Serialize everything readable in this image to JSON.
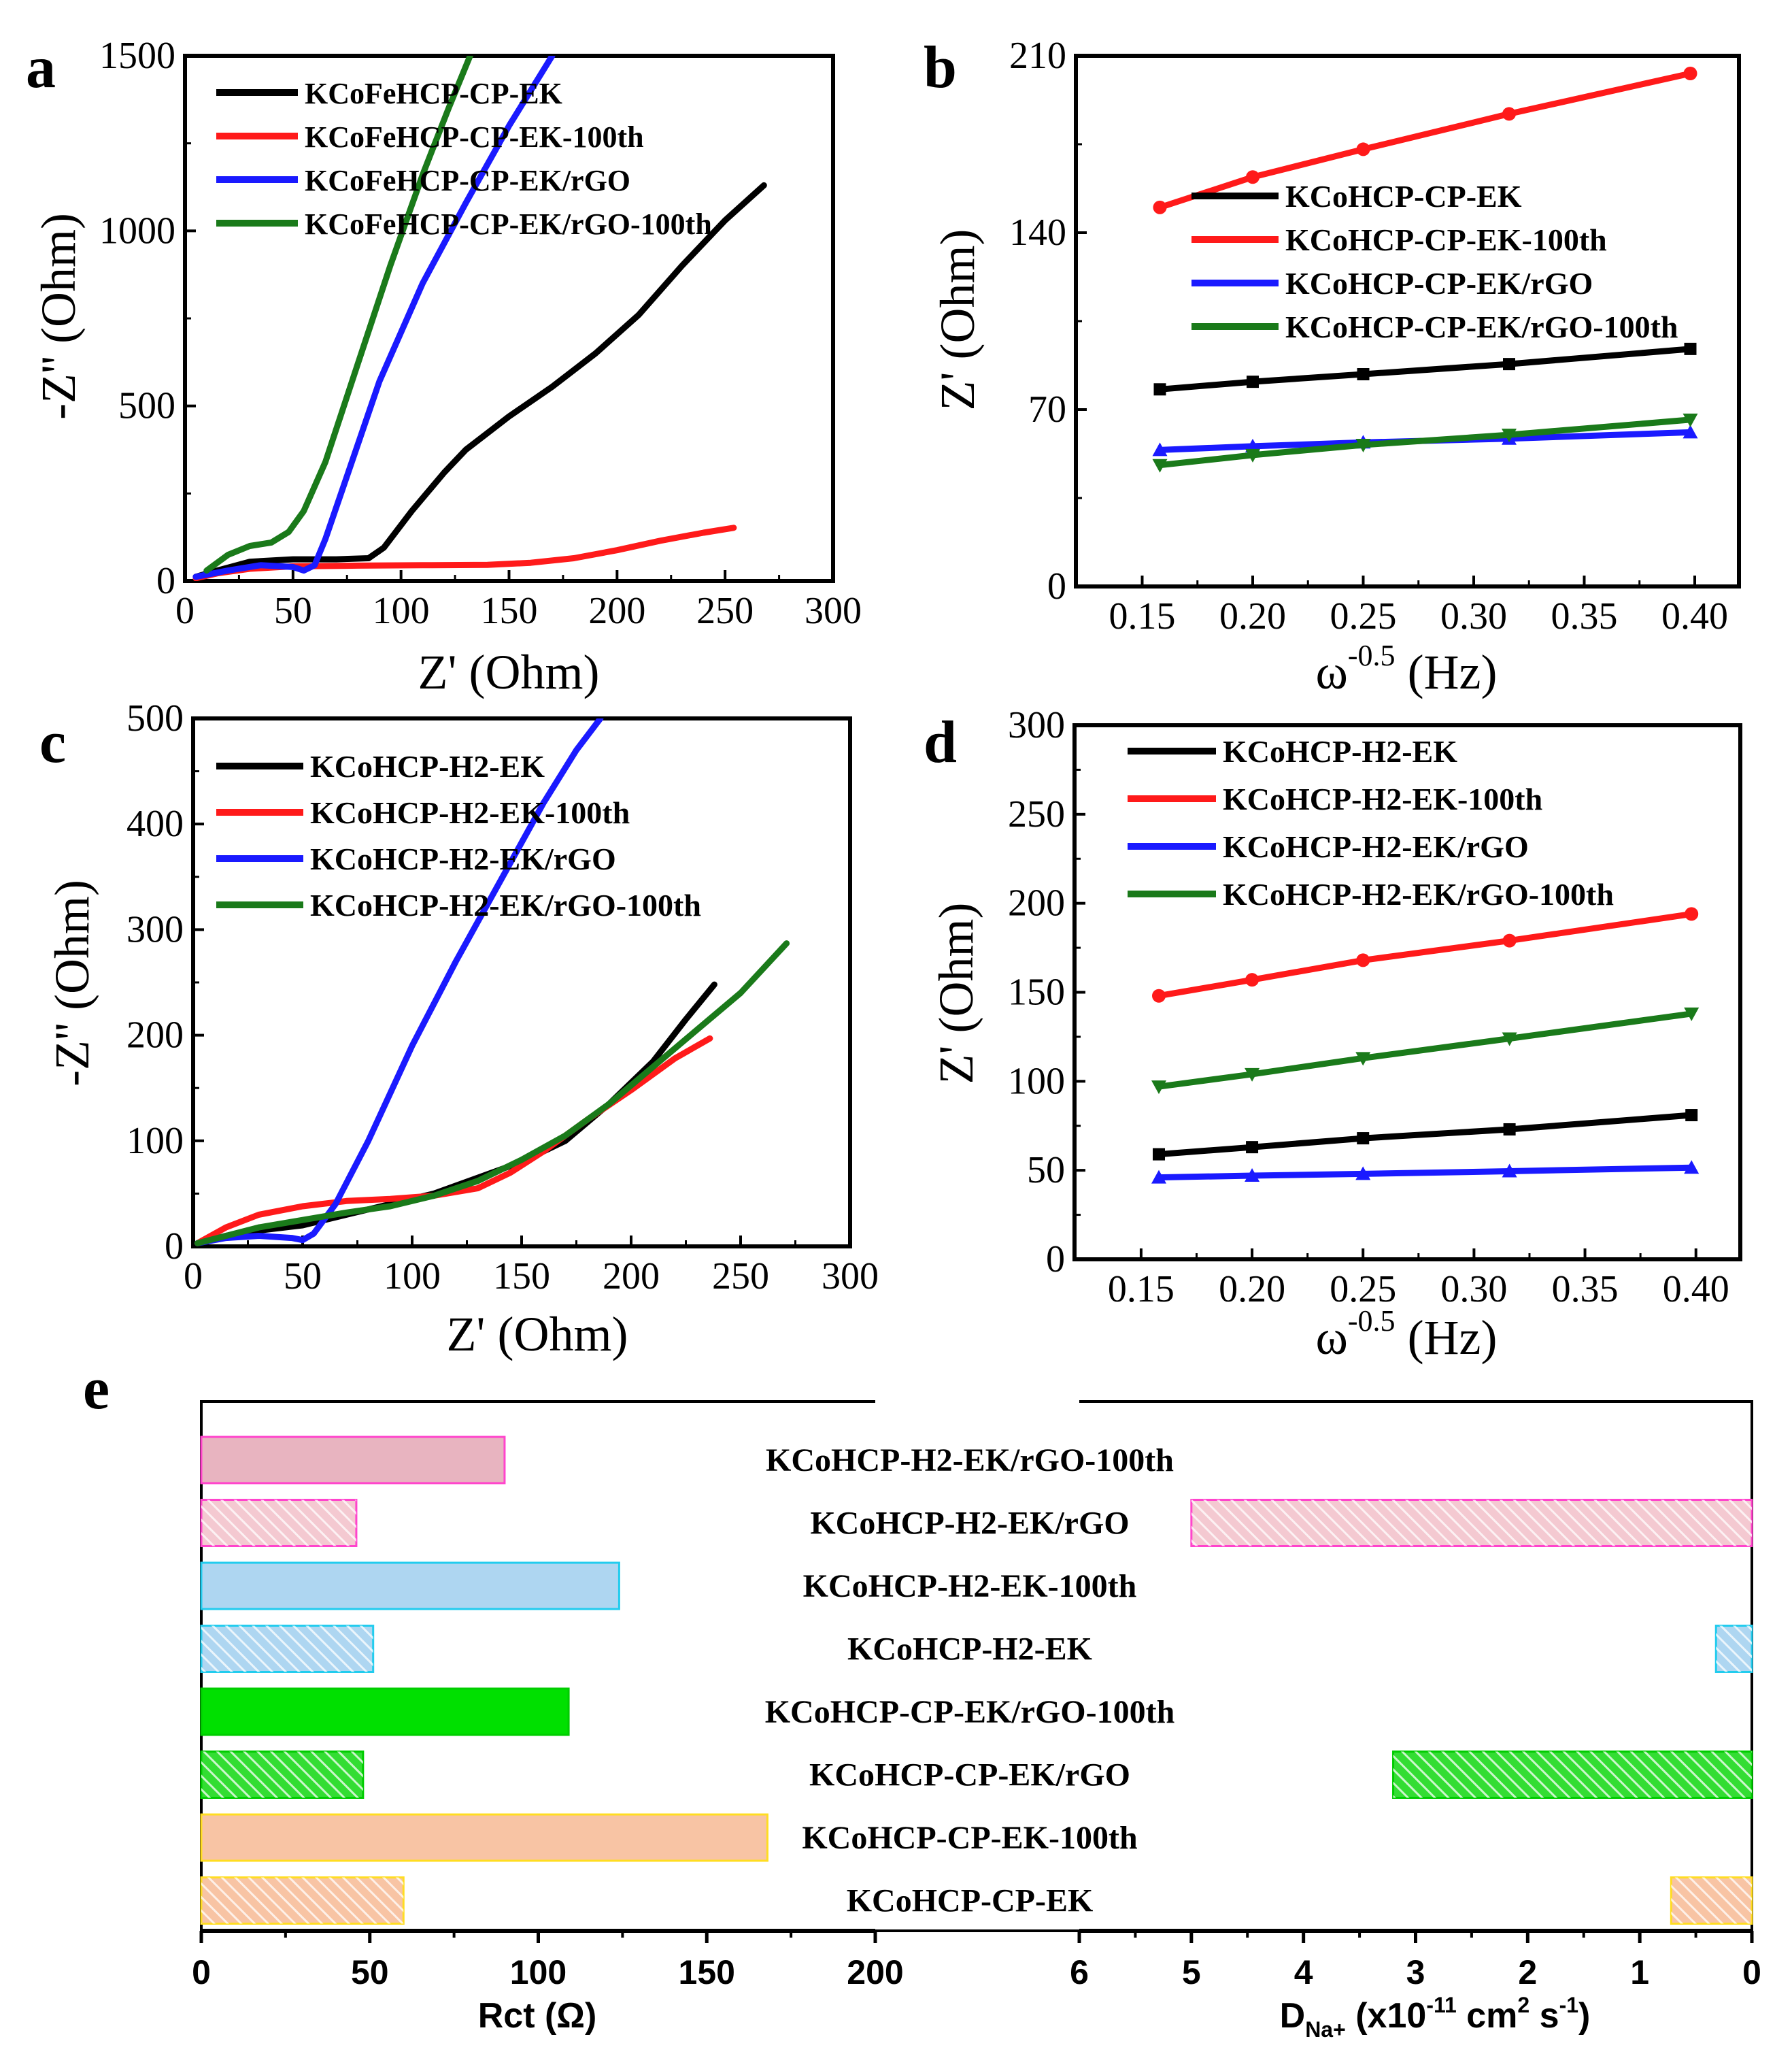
{
  "colors": {
    "black": "#000000",
    "red": "#ff1a1a",
    "blue": "#1a1aff",
    "green": "#1a7a1a"
  },
  "chart_data": [
    {
      "panel": "a",
      "type": "line",
      "xlabel": "Z' (Ohm)",
      "ylabel": "-Z'' (Ohm)",
      "xlim": [
        0,
        300
      ],
      "ylim": [
        0,
        1500
      ],
      "xticks": [
        "0",
        "50",
        "100",
        "150",
        "200",
        "250",
        "300"
      ],
      "yticks": [
        "0",
        "500",
        "1000",
        "1500"
      ],
      "legend": "top-left",
      "series": [
        {
          "name": "KCoFeHCP-CP-EK",
          "color": "#000000",
          "points": [
            [
              5,
              12
            ],
            [
              15,
              30
            ],
            [
              30,
              55
            ],
            [
              50,
              62
            ],
            [
              70,
              62
            ],
            [
              85,
              65
            ],
            [
              92,
              95
            ],
            [
              105,
              200
            ],
            [
              120,
              310
            ],
            [
              130,
              375
            ],
            [
              150,
              470
            ],
            [
              170,
              555
            ],
            [
              190,
              650
            ],
            [
              210,
              760
            ],
            [
              230,
              900
            ],
            [
              250,
              1030
            ],
            [
              268,
              1130
            ]
          ]
        },
        {
          "name": "KCoFeHCP-CP-EK-100th",
          "color": "#ff1a1a",
          "points": [
            [
              5,
              8
            ],
            [
              15,
              22
            ],
            [
              30,
              35
            ],
            [
              50,
              42
            ],
            [
              80,
              44
            ],
            [
              110,
              45
            ],
            [
              140,
              46
            ],
            [
              160,
              52
            ],
            [
              180,
              65
            ],
            [
              200,
              88
            ],
            [
              220,
              115
            ],
            [
              240,
              138
            ],
            [
              254,
              152
            ]
          ]
        },
        {
          "name": "KCoFeHCP-CP-EK/rGO",
          "color": "#1a1aff",
          "points": [
            [
              5,
              12
            ],
            [
              20,
              30
            ],
            [
              35,
              45
            ],
            [
              50,
              40
            ],
            [
              55,
              30
            ],
            [
              60,
              45
            ],
            [
              65,
              120
            ],
            [
              75,
              300
            ],
            [
              90,
              570
            ],
            [
              110,
              850
            ],
            [
              130,
              1080
            ],
            [
              150,
              1300
            ],
            [
              170,
              1500
            ]
          ]
        },
        {
          "name": "KCoFeHCP-CP-EK/rGO-100th",
          "color": "#1a7a1a",
          "points": [
            [
              10,
              30
            ],
            [
              20,
              75
            ],
            [
              30,
              100
            ],
            [
              40,
              110
            ],
            [
              48,
              140
            ],
            [
              55,
              200
            ],
            [
              65,
              340
            ],
            [
              80,
              620
            ],
            [
              95,
              900
            ],
            [
              110,
              1160
            ],
            [
              122,
              1350
            ],
            [
              132,
              1500
            ]
          ]
        }
      ]
    },
    {
      "panel": "b",
      "type": "line",
      "xlabel": "ω-0.5 (Hz)",
      "ylabel": "Z' (Ohm)",
      "xlim": [
        0.12,
        0.42
      ],
      "ylim": [
        0,
        210
      ],
      "xticks": [
        "0.15",
        "0.20",
        "0.25",
        "0.30",
        "0.35",
        "0.40"
      ],
      "yticks": [
        "0",
        "70",
        "140",
        "210"
      ],
      "legend": "upper-left",
      "series": [
        {
          "name": "KCoHCP-CP-EK",
          "color": "#000000",
          "x": [
            0.158,
            0.2,
            0.25,
            0.316,
            0.398
          ],
          "y": [
            78,
            81,
            84,
            88,
            94
          ]
        },
        {
          "name": "KCoHCP-CP-EK-100th",
          "color": "#ff1a1a",
          "x": [
            0.158,
            0.2,
            0.25,
            0.316,
            0.398
          ],
          "y": [
            150,
            162,
            173,
            187,
            203
          ]
        },
        {
          "name": "KCoHCP-CP-EK/rGO",
          "color": "#1a1aff",
          "x": [
            0.158,
            0.2,
            0.25,
            0.316,
            0.398
          ],
          "y": [
            54,
            55.5,
            57,
            58.5,
            61
          ]
        },
        {
          "name": "KCoHCP-CP-EK/rGO-100th",
          "color": "#1a7a1a",
          "x": [
            0.158,
            0.2,
            0.25,
            0.316,
            0.398
          ],
          "y": [
            48,
            52,
            56,
            60,
            66
          ]
        }
      ]
    },
    {
      "panel": "c",
      "type": "line",
      "xlabel": "Z' (Ohm)",
      "ylabel": "-Z'' (Ohm)",
      "xlim": [
        0,
        300
      ],
      "ylim": [
        0,
        500
      ],
      "xticks": [
        "0",
        "50",
        "100",
        "150",
        "200",
        "250",
        "300"
      ],
      "yticks": [
        "0",
        "100",
        "200",
        "300",
        "400",
        "500"
      ],
      "legend": "top-left",
      "series": [
        {
          "name": "KCoHCP-H2-EK",
          "color": "#000000",
          "points": [
            [
              2,
              2
            ],
            [
              15,
              10
            ],
            [
              30,
              15
            ],
            [
              50,
              20
            ],
            [
              70,
              30
            ],
            [
              90,
              40
            ],
            [
              110,
              50
            ],
            [
              130,
              65
            ],
            [
              150,
              80
            ],
            [
              170,
              100
            ],
            [
              190,
              135
            ],
            [
              210,
              175
            ],
            [
              225,
              215
            ],
            [
              238,
              248
            ]
          ]
        },
        {
          "name": "KCoHCP-H2-EK-100th",
          "color": "#ff1a1a",
          "points": [
            [
              2,
              3
            ],
            [
              15,
              18
            ],
            [
              30,
              30
            ],
            [
              50,
              38
            ],
            [
              70,
              43
            ],
            [
              90,
              45
            ],
            [
              110,
              48
            ],
            [
              130,
              55
            ],
            [
              145,
              70
            ],
            [
              160,
              90
            ],
            [
              180,
              120
            ],
            [
              200,
              148
            ],
            [
              220,
              178
            ],
            [
              236,
              197
            ]
          ]
        },
        {
          "name": "KCoHCP-H2-EK/rGO",
          "color": "#1a1aff",
          "points": [
            [
              2,
              3
            ],
            [
              15,
              8
            ],
            [
              30,
              10
            ],
            [
              45,
              8
            ],
            [
              50,
              6
            ],
            [
              55,
              12
            ],
            [
              65,
              40
            ],
            [
              80,
              100
            ],
            [
              100,
              190
            ],
            [
              120,
              270
            ],
            [
              140,
              345
            ],
            [
              160,
              420
            ],
            [
              175,
              470
            ],
            [
              186,
              500
            ]
          ]
        },
        {
          "name": "KCoHCP-H2-EK/rGO-100th",
          "color": "#1a7a1a",
          "points": [
            [
              2,
              3
            ],
            [
              15,
              10
            ],
            [
              30,
              18
            ],
            [
              50,
              25
            ],
            [
              70,
              32
            ],
            [
              90,
              38
            ],
            [
              110,
              48
            ],
            [
              130,
              62
            ],
            [
              150,
              82
            ],
            [
              170,
              105
            ],
            [
              190,
              135
            ],
            [
              210,
              170
            ],
            [
              230,
              205
            ],
            [
              250,
              240
            ],
            [
              271,
              287
            ]
          ]
        }
      ]
    },
    {
      "panel": "d",
      "type": "line",
      "xlabel": "ω-0.5 (Hz)",
      "ylabel": "Z' (Ohm)",
      "xlim": [
        0.12,
        0.42
      ],
      "ylim": [
        0,
        300
      ],
      "xticks": [
        "0.15",
        "0.20",
        "0.25",
        "0.30",
        "0.35",
        "0.40"
      ],
      "yticks": [
        "0",
        "50",
        "100",
        "150",
        "200",
        "250",
        "300"
      ],
      "legend": "top-left",
      "series": [
        {
          "name": "KCoHCP-H2-EK",
          "color": "#000000",
          "x": [
            0.158,
            0.2,
            0.25,
            0.316,
            0.398
          ],
          "y": [
            59,
            63,
            68,
            73,
            81
          ]
        },
        {
          "name": "KCoHCP-H2-EK-100th",
          "color": "#ff1a1a",
          "x": [
            0.158,
            0.2,
            0.25,
            0.316,
            0.398
          ],
          "y": [
            148,
            157,
            168,
            179,
            194
          ]
        },
        {
          "name": "KCoHCP-H2-EK/rGO",
          "color": "#1a1aff",
          "x": [
            0.158,
            0.2,
            0.25,
            0.316,
            0.398
          ],
          "y": [
            46,
            47,
            48,
            49.5,
            51.5
          ]
        },
        {
          "name": "KCoHCP-H2-EK/rGO-100th",
          "color": "#1a7a1a",
          "x": [
            0.158,
            0.2,
            0.25,
            0.316,
            0.398
          ],
          "y": [
            97,
            104,
            113,
            124,
            138
          ]
        }
      ]
    },
    {
      "panel": "e",
      "type": "bar",
      "orientation": "horizontal",
      "categories": [
        "KCoHCP-H2-EK/rGO-100th",
        "KCoHCP-H2-EK/rGO",
        "KCoHCP-H2-EK-100th",
        "KCoHCP-H2-EK",
        "KCoHCP-CP-EK/rGO-100th",
        "KCoHCP-CP-EK/rGO",
        "KCoHCP-CP-EK-100th",
        "KCoHCP-CP-EK"
      ],
      "styles": [
        {
          "fill": "#e8b4c0",
          "edge": "#ff44cc",
          "hatch": false
        },
        {
          "fill": "#f4c9d1",
          "edge": "#ff44cc",
          "hatch": true
        },
        {
          "fill": "#aed6f1",
          "edge": "#22ccee",
          "hatch": false
        },
        {
          "fill": "#aed6f1",
          "edge": "#22ccee",
          "hatch": true
        },
        {
          "fill": "#00e000",
          "edge": "#00cc00",
          "hatch": false
        },
        {
          "fill": "#33dd33",
          "edge": "#00cc00",
          "hatch": true
        },
        {
          "fill": "#f8c4a4",
          "edge": "#ffdd22",
          "hatch": false
        },
        {
          "fill": "#f8c4a4",
          "edge": "#ffdd22",
          "hatch": true
        }
      ],
      "rct": {
        "xlabel": "Rct (Ω)",
        "xlim": [
          0,
          200
        ],
        "xticks": [
          "0",
          "50",
          "100",
          "150",
          "200"
        ],
        "values": [
          90,
          46,
          124,
          51,
          109,
          48,
          168,
          60
        ]
      },
      "diffusion": {
        "xlabel_main": "D",
        "xlabel_sub": "Na+",
        "xlabel_rest": " (x10",
        "xlabel_exp": "-11",
        "xlabel_unit": " cm",
        "xlabel_unit_exp": "2",
        "xlabel_s": " s",
        "xlabel_s_exp": "-1",
        "xlabel_close": ")",
        "xlim": [
          6,
          0
        ],
        "xticks": [
          "6",
          "5",
          "4",
          "3",
          "2",
          "1",
          "0"
        ],
        "values": [
          null,
          5.0,
          null,
          0.32,
          null,
          3.2,
          null,
          0.72
        ]
      }
    }
  ],
  "labels": {
    "a": "a",
    "b": "b",
    "c": "c",
    "d": "d",
    "e": "e"
  },
  "axis_text": {
    "a_x": "Z' (Ohm)",
    "a_y": "-Z'' (Ohm)",
    "b_x_main": "ω",
    "b_x_exp": "-0.5",
    "b_x_unit": " (Hz)",
    "b_y": "Z' (Ohm)",
    "c_x": "Z' (Ohm)",
    "c_y": "-Z'' (Ohm)",
    "d_x_main": "ω",
    "d_x_exp": "-0.5",
    "d_x_unit": " (Hz)",
    "d_y": "Z' (Ohm)"
  }
}
